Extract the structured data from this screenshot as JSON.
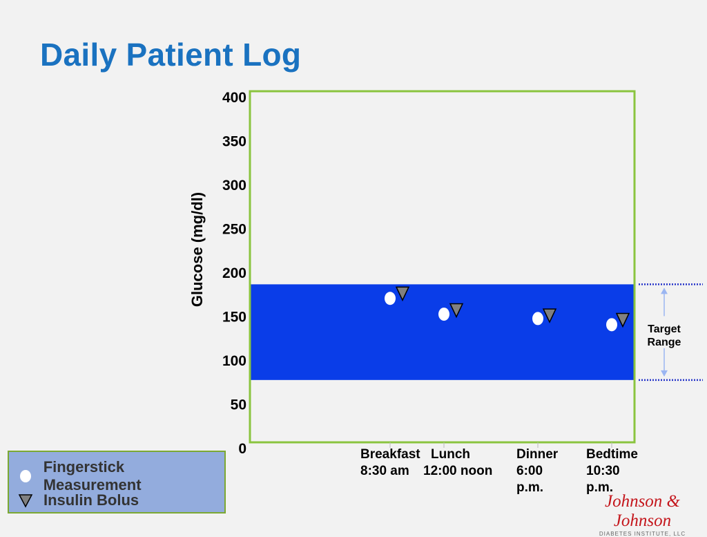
{
  "page": {
    "title": "Daily Patient Log"
  },
  "chart_data": {
    "type": "scatter",
    "title": "",
    "ylabel": "Glucose (mg/dl)",
    "xlabel": "",
    "ylim": [
      0,
      400
    ],
    "yticks": [
      0,
      50,
      100,
      150,
      200,
      250,
      300,
      350,
      400
    ],
    "categories": [
      {
        "lines": [
          "Breakfast",
          "8:30 am"
        ]
      },
      {
        "lines": [
          "Lunch",
          "12:00 noon"
        ]
      },
      {
        "lines": [
          "Dinner",
          "6:00",
          "p.m."
        ]
      },
      {
        "lines": [
          "Bedtime",
          "10:30",
          "p.m."
        ]
      }
    ],
    "target_range": {
      "low": 71,
      "high": 180,
      "label_lines": [
        "Target",
        "Range"
      ]
    },
    "series": [
      {
        "name": "Fingerstick Measurement",
        "marker": "circle",
        "color": "#ffffff",
        "values": [
          164,
          146,
          141,
          134
        ]
      },
      {
        "name": "Insulin Bolus",
        "marker": "triangle-down",
        "color": "#808080",
        "values": [
          169,
          150,
          144,
          139
        ]
      }
    ],
    "grid": false,
    "legend_position": "bottom-left"
  },
  "colors": {
    "title": "#1a72c0",
    "plot_border": "#8ac43f",
    "target_band": "#0a3de8",
    "range_marker": "#2433c9",
    "range_arrow": "#9bb6f2",
    "legend_bg": "#93acdd"
  },
  "logo": {
    "main": "Johnson & Johnson",
    "sub": "DIABETES INSTITUTE, LLC"
  }
}
